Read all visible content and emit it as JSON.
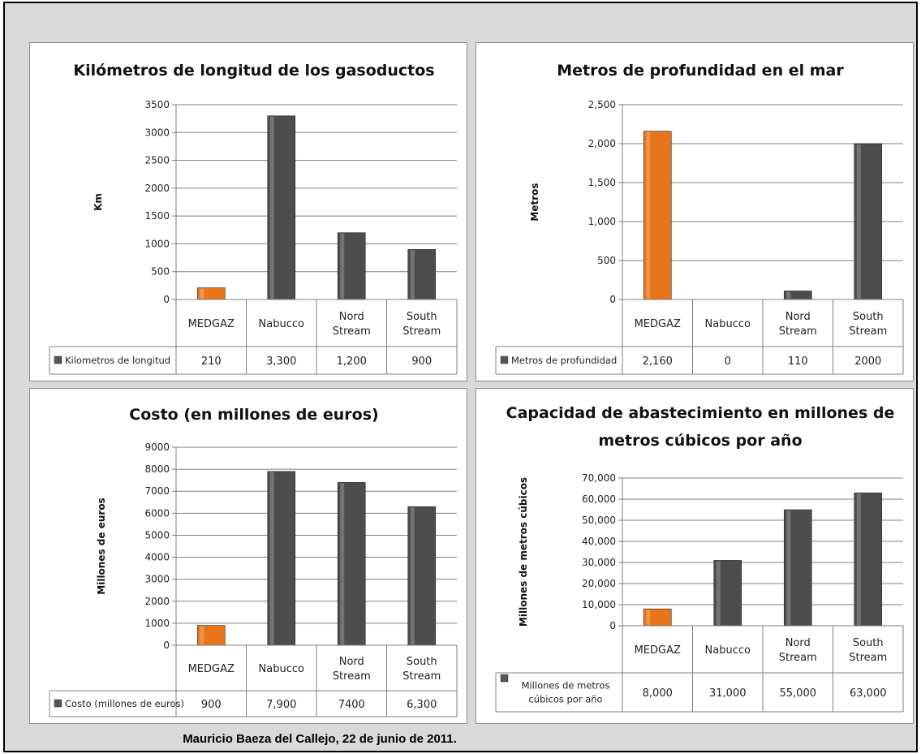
{
  "colors": {
    "frame_background": "#d9d9d9",
    "medgaz_bar": "#e8751a",
    "other_bars": "#4d4d4d",
    "legend_key": "#555555"
  },
  "footer": "Mauricio Baeza del Callejo, 22 de junio de 2011.",
  "chart_data": [
    {
      "type": "bar",
      "title": "Kilómetros de longitud de los gasoductos",
      "ylabel": "Km",
      "categories": [
        "MEDGAZ",
        "Nabucco",
        "Nord Stream",
        "South Stream"
      ],
      "category_lines": [
        [
          "MEDGAZ"
        ],
        [
          "Nabucco"
        ],
        [
          "Nord",
          "Stream"
        ],
        [
          "South",
          "Stream"
        ]
      ],
      "y_ticks": [
        "0",
        "500",
        "1000",
        "1500",
        "2000",
        "2500",
        "3000",
        "3500"
      ],
      "ylim": [
        0,
        3500
      ],
      "grid": true,
      "series": [
        {
          "name": "Kilometros de longitud",
          "values": [
            210,
            3300,
            1200,
            900
          ],
          "value_labels": [
            "210",
            "3,300",
            "1,200",
            "900"
          ]
        }
      ],
      "data_table": true
    },
    {
      "type": "bar",
      "title": "Metros de profundidad en el mar",
      "ylabel": "Metros",
      "categories": [
        "MEDGAZ",
        "Nabucco",
        "Nord Stream",
        "South Stream"
      ],
      "category_lines": [
        [
          "MEDGAZ"
        ],
        [
          "Nabucco"
        ],
        [
          "Nord",
          "Stream"
        ],
        [
          "South",
          "Stream"
        ]
      ],
      "y_ticks": [
        "0",
        "500",
        "1,000",
        "1,500",
        "2,000",
        "2,500"
      ],
      "ylim": [
        0,
        2500
      ],
      "grid": true,
      "series": [
        {
          "name": "Metros de profundidad",
          "values": [
            2160,
            0,
            110,
            2000
          ],
          "value_labels": [
            "2,160",
            "0",
            "110",
            "2000"
          ]
        }
      ],
      "data_table": true
    },
    {
      "type": "bar",
      "title": "Costo (en millones de euros)",
      "ylabel": "Millones de euros",
      "categories": [
        "MEDGAZ",
        "Nabucco",
        "Nord Stream",
        "South Stream"
      ],
      "category_lines": [
        [
          "MEDGAZ"
        ],
        [
          "Nabucco"
        ],
        [
          "Nord",
          "Stream"
        ],
        [
          "South",
          "Stream"
        ]
      ],
      "y_ticks": [
        "0",
        "1000",
        "2000",
        "3000",
        "4000",
        "5000",
        "6000",
        "7000",
        "8000",
        "9000"
      ],
      "ylim": [
        0,
        9000
      ],
      "grid": true,
      "series": [
        {
          "name": "Costo (millones de euros)",
          "values": [
            900,
            7900,
            7400,
            6300
          ],
          "value_labels": [
            "900",
            "7,900",
            "7400",
            "6,300"
          ]
        }
      ],
      "data_table": true
    },
    {
      "type": "bar",
      "title": "Capacidad de abastecimiento en millones de metros cúbicos por año",
      "title_lines": [
        "Capacidad de abastecimiento en millones de",
        "metros cúbicos por año"
      ],
      "ylabel": "Millones de metros cúbicos",
      "categories": [
        "MEDGAZ",
        "Nabucco",
        "Nord Stream",
        "South Stream"
      ],
      "category_lines": [
        [
          "MEDGAZ"
        ],
        [
          "Nabucco"
        ],
        [
          "Nord",
          "Stream"
        ],
        [
          "South",
          "Stream"
        ]
      ],
      "y_ticks": [
        "0",
        "10,000",
        "20,000",
        "30,000",
        "40,000",
        "50,000",
        "60,000",
        "70,000"
      ],
      "ylim": [
        0,
        70000
      ],
      "grid": true,
      "series": [
        {
          "name": "Millones de metros cúbicos por año",
          "name_lines": [
            "Millones de metros",
            "cúbicos por año"
          ],
          "values": [
            8000,
            31000,
            55000,
            63000
          ],
          "value_labels": [
            "8,000",
            "31,000",
            "55,000",
            "63,000"
          ]
        }
      ],
      "data_table": true
    }
  ]
}
